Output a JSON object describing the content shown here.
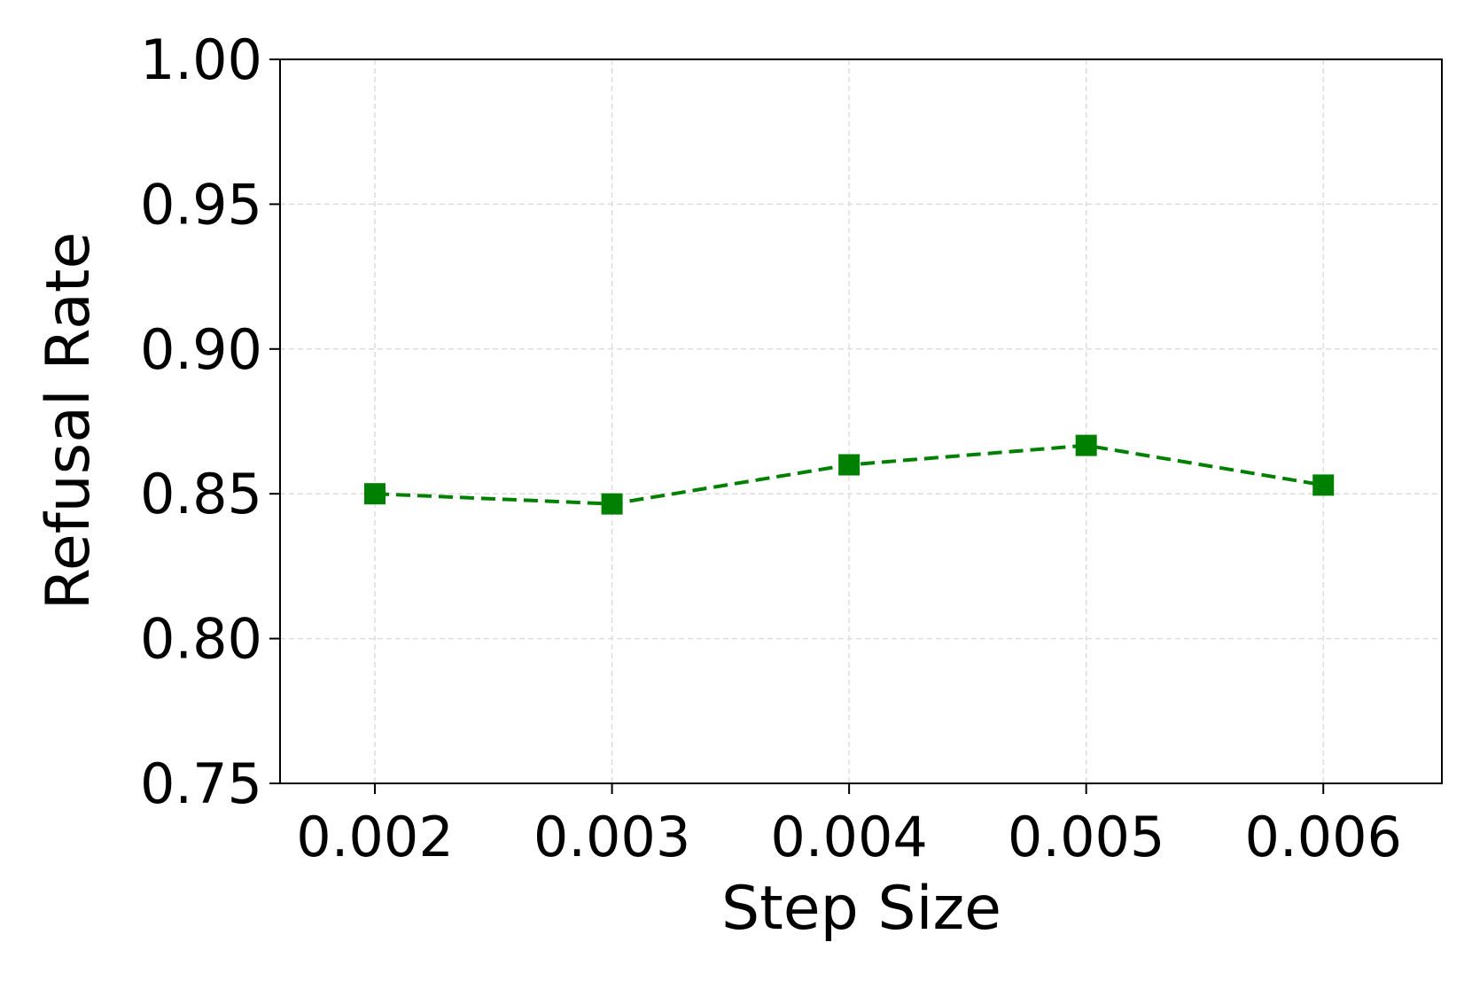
{
  "chart_data": {
    "type": "line",
    "xlabel": "Step Size",
    "ylabel": "Refusal Rate",
    "x": [
      0.002,
      0.003,
      0.004,
      0.005,
      0.006
    ],
    "series": [
      {
        "color": "#008000",
        "values": [
          0.85,
          0.8465,
          0.86,
          0.8667,
          0.853
        ]
      }
    ],
    "xlim": [
      0.0016,
      0.0065
    ],
    "xticks": [
      0.002,
      0.003,
      0.004,
      0.005,
      0.006
    ],
    "ylim": [
      0.75,
      1.0
    ],
    "yticks": [
      0.75,
      {
        "value": 0.8,
        "label": "0.80"
      },
      0.85,
      {
        "value": 0.9,
        "label": "0.90"
      },
      0.95,
      {
        "value": 1.0,
        "label": "1.00"
      }
    ],
    "grid": true
  }
}
